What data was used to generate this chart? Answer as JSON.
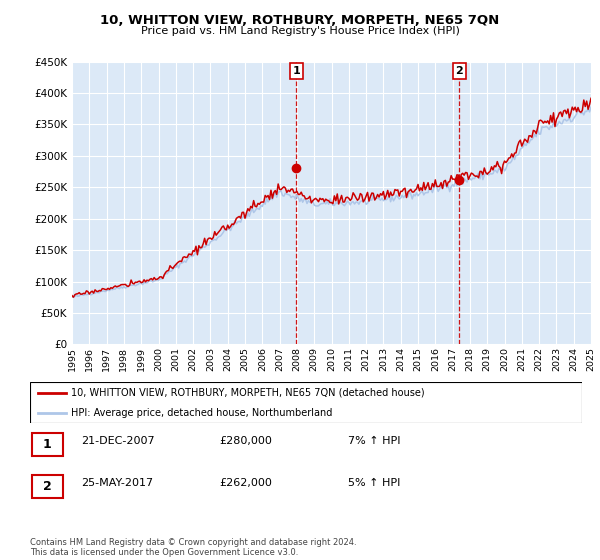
{
  "title": "10, WHITTON VIEW, ROTHBURY, MORPETH, NE65 7QN",
  "subtitle": "Price paid vs. HM Land Registry's House Price Index (HPI)",
  "legend_line1": "10, WHITTON VIEW, ROTHBURY, MORPETH, NE65 7QN (detached house)",
  "legend_line2": "HPI: Average price, detached house, Northumberland",
  "table": [
    {
      "num": "1",
      "date": "21-DEC-2007",
      "price": "£280,000",
      "hpi": "7% ↑ HPI"
    },
    {
      "num": "2",
      "date": "25-MAY-2017",
      "price": "£262,000",
      "hpi": "5% ↑ HPI"
    }
  ],
  "footnote": "Contains HM Land Registry data © Crown copyright and database right 2024.\nThis data is licensed under the Open Government Licence v3.0.",
  "marker1_x": 2007.97,
  "marker2_x": 2017.39,
  "marker1_y": 280000,
  "marker2_y": 262000,
  "hpi_color": "#aec6e8",
  "price_color": "#cc0000",
  "background_color": "#dce9f7",
  "ylim": [
    0,
    450000
  ],
  "xlim_start": 1995,
  "xlim_end": 2025
}
